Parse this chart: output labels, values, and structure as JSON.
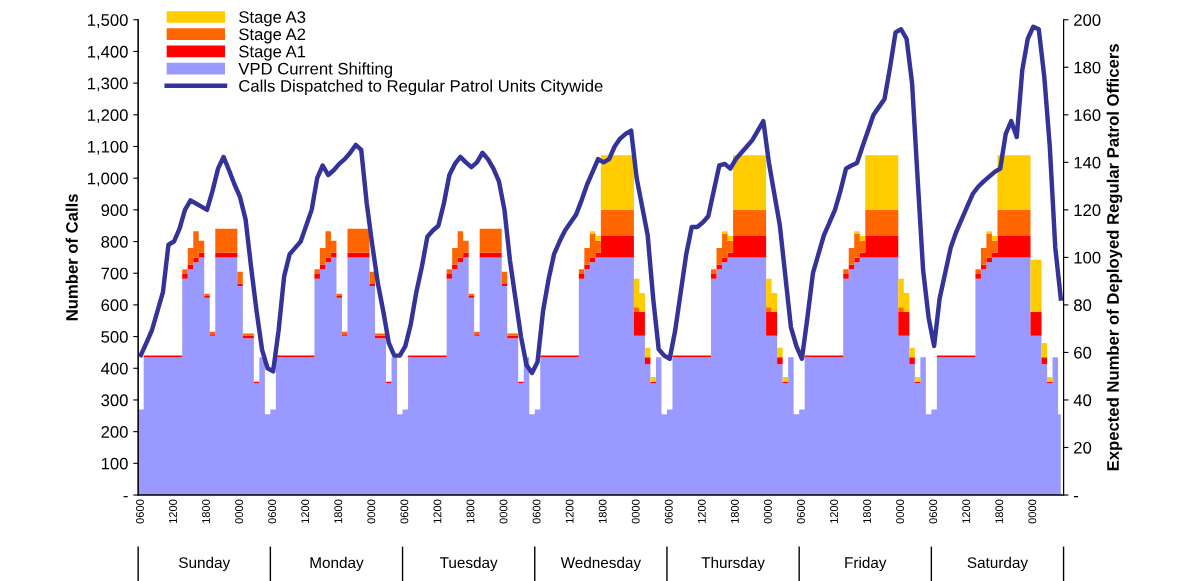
{
  "chart_data": {
    "type": "area",
    "stacked": true,
    "ylabel": "Number of Calls",
    "y2label": "Expected Number of Deployed Regular Patrol Officers",
    "categories": [
      "0600",
      null,
      null,
      null,
      null,
      null,
      "1200",
      null,
      null,
      null,
      null,
      null,
      "1800",
      null,
      null,
      null,
      null,
      null,
      "0000",
      null,
      null,
      null,
      null,
      null,
      "0600",
      null,
      null,
      null,
      null,
      null,
      "1200",
      null,
      null,
      null,
      null,
      null,
      "1800",
      null,
      null,
      null,
      null,
      null,
      "0000",
      null,
      null,
      null,
      null,
      null,
      "0600",
      null,
      null,
      null,
      null,
      null,
      "1200",
      null,
      null,
      null,
      null,
      null,
      "1800",
      null,
      null,
      null,
      null,
      null,
      "0000",
      null,
      null,
      null,
      null,
      null,
      "0600",
      null,
      null,
      null,
      null,
      null,
      "1200",
      null,
      null,
      null,
      null,
      null,
      "1800",
      null,
      null,
      null,
      null,
      null,
      "0000",
      null,
      null,
      null,
      null,
      null,
      "0600",
      null,
      null,
      null,
      null,
      null,
      "1200",
      null,
      null,
      null,
      null,
      null,
      "1800",
      null,
      null,
      null,
      null,
      null,
      "0000",
      null,
      null,
      null,
      null,
      null,
      "0600",
      null,
      null,
      null,
      null,
      null,
      "1200",
      null,
      null,
      null,
      null,
      null,
      "1800",
      null,
      null,
      null,
      null,
      null,
      "0000",
      null,
      null,
      null,
      null,
      null,
      "0600",
      null,
      null,
      null,
      null,
      null,
      "1200",
      null,
      null,
      null,
      null,
      null,
      "1800",
      null,
      null,
      null,
      null,
      null,
      "0000",
      null,
      null,
      null,
      null,
      null
    ],
    "series": [
      {
        "name": "VPD Current Shifting",
        "axis": "y2",
        "color": "#9999ff",
        "values": [
          36,
          58,
          58,
          58,
          58,
          58,
          58,
          58,
          91,
          95,
          98,
          100,
          83,
          67,
          100,
          100,
          100,
          100,
          88,
          66,
          66,
          47,
          58,
          34,
          36,
          58,
          58,
          58,
          58,
          58,
          58,
          58,
          91,
          95,
          98,
          100,
          83,
          67,
          100,
          100,
          100,
          100,
          88,
          66,
          66,
          47,
          58,
          34,
          36,
          58,
          58,
          58,
          58,
          58,
          58,
          58,
          91,
          95,
          98,
          100,
          83,
          67,
          100,
          100,
          100,
          100,
          88,
          66,
          66,
          47,
          58,
          34,
          36,
          58,
          58,
          58,
          58,
          58,
          58,
          58,
          91,
          95,
          98,
          100,
          100,
          100,
          100,
          100,
          100,
          100,
          67,
          67,
          55,
          47,
          58,
          34,
          36,
          58,
          58,
          58,
          58,
          58,
          58,
          58,
          91,
          95,
          98,
          100,
          100,
          100,
          100,
          100,
          100,
          100,
          67,
          67,
          55,
          47,
          58,
          34,
          36,
          58,
          58,
          58,
          58,
          58,
          58,
          58,
          91,
          95,
          98,
          100,
          100,
          100,
          100,
          100,
          100,
          100,
          67,
          67,
          55,
          47,
          58,
          34,
          36,
          58,
          58,
          58,
          58,
          58,
          58,
          58,
          91,
          95,
          98,
          100,
          100,
          100,
          100,
          100,
          100,
          100,
          67,
          67,
          55,
          47,
          58,
          34
        ]
      },
      {
        "name": "Stage A1",
        "axis": "y2",
        "color": "#ff0000",
        "values": [
          0,
          0.7,
          0.7,
          0.7,
          0.7,
          0.7,
          0.7,
          0.7,
          2,
          2,
          2,
          2,
          0.7,
          0.7,
          2,
          2,
          2,
          2,
          1,
          1,
          1,
          0.7,
          0,
          0,
          0,
          0.7,
          0.7,
          0.7,
          0.7,
          0.7,
          0.7,
          0.7,
          2,
          2,
          2,
          2,
          0.7,
          0.7,
          2,
          2,
          2,
          2,
          1,
          1,
          1,
          0.7,
          0,
          0,
          0,
          0.7,
          0.7,
          0.7,
          0.7,
          0.7,
          0.7,
          0.7,
          2,
          2,
          2,
          2,
          0.7,
          0.7,
          2,
          2,
          2,
          2,
          1,
          1,
          1,
          0.7,
          0,
          0,
          0,
          0.7,
          0.7,
          0.7,
          0.7,
          0.7,
          0.7,
          0.7,
          2,
          2,
          2,
          2,
          9,
          9,
          9,
          9,
          9,
          9,
          10,
          10,
          3,
          0.7,
          0,
          0,
          0,
          0.7,
          0.7,
          0.7,
          0.7,
          0.7,
          0.7,
          0.7,
          2,
          2,
          2,
          2,
          9,
          9,
          9,
          9,
          9,
          9,
          10,
          10,
          3,
          0.7,
          0,
          0,
          0,
          0.7,
          0.7,
          0.7,
          0.7,
          0.7,
          0.7,
          0.7,
          2,
          2,
          2,
          2,
          9,
          9,
          9,
          9,
          9,
          9,
          10,
          10,
          3,
          0.7,
          0,
          0,
          0,
          0.7,
          0.7,
          0.7,
          0.7,
          0.7,
          0.7,
          0.7,
          2,
          2,
          2,
          2,
          9,
          9,
          9,
          9,
          9,
          9,
          10,
          10,
          3,
          0.7,
          0,
          0
        ]
      },
      {
        "name": "Stage A2",
        "axis": "y2",
        "color": "#ff6600",
        "values": [
          0,
          0,
          0,
          0,
          0,
          0,
          0,
          0,
          2,
          7,
          11,
          5,
          1,
          1,
          10,
          10,
          10,
          10,
          5,
          1,
          1,
          0,
          0,
          0,
          0,
          0,
          0,
          0,
          0,
          0,
          0,
          0,
          2,
          7,
          11,
          5,
          1,
          1,
          10,
          10,
          10,
          10,
          5,
          1,
          1,
          0,
          0,
          0,
          0,
          0,
          0,
          0,
          0,
          0,
          0,
          0,
          2,
          7,
          11,
          5,
          1,
          1,
          10,
          10,
          10,
          10,
          5,
          1,
          1,
          0,
          0,
          0,
          0,
          0,
          0,
          0,
          0,
          0,
          0,
          0,
          2,
          7,
          10,
          5,
          11,
          11,
          11,
          11,
          11,
          11,
          2,
          0,
          0,
          0,
          0,
          0,
          0,
          0,
          0,
          0,
          0,
          0,
          0,
          0,
          2,
          7,
          10,
          5,
          11,
          11,
          11,
          11,
          11,
          11,
          2,
          0,
          0,
          0,
          0,
          0,
          0,
          0,
          0,
          0,
          0,
          0,
          0,
          0,
          2,
          7,
          10,
          5,
          11,
          11,
          11,
          11,
          11,
          11,
          2,
          0,
          0,
          0,
          0,
          0,
          0,
          0,
          0,
          0,
          0,
          0,
          0,
          0,
          2,
          7,
          10,
          5,
          11,
          11,
          11,
          11,
          11,
          11,
          0,
          0,
          0,
          0,
          0,
          0
        ]
      },
      {
        "name": "Stage A3",
        "axis": "y2",
        "color": "#ffcc00",
        "values": [
          0,
          0,
          0,
          0,
          0,
          0,
          0,
          0,
          0,
          0,
          0,
          0,
          0,
          0,
          0,
          0,
          0,
          0,
          0,
          0,
          0,
          0,
          0,
          0,
          0,
          0,
          0,
          0,
          0,
          0,
          0,
          0,
          0,
          0,
          0,
          0,
          0,
          0,
          0,
          0,
          0,
          0,
          0,
          0,
          0,
          0,
          0,
          0,
          0,
          0,
          0,
          0,
          0,
          0,
          0,
          0,
          0,
          0,
          0,
          0,
          0,
          0,
          0,
          0,
          0,
          0,
          0,
          0,
          0,
          0,
          0,
          0,
          0,
          0,
          0,
          0,
          0,
          0,
          0,
          0,
          0,
          0,
          1,
          2,
          23,
          23,
          23,
          23,
          23,
          23,
          12,
          8,
          4,
          2,
          0,
          0,
          0,
          0,
          0,
          0,
          0,
          0,
          0,
          0,
          0,
          0,
          1,
          2,
          23,
          23,
          23,
          23,
          23,
          23,
          12,
          8,
          4,
          2,
          0,
          0,
          0,
          0,
          0,
          0,
          0,
          0,
          0,
          0,
          0,
          0,
          1,
          2,
          23,
          23,
          23,
          23,
          23,
          23,
          12,
          8,
          4,
          2,
          0,
          0,
          0,
          0,
          0,
          0,
          0,
          0,
          0,
          0,
          0,
          0,
          1,
          2,
          23,
          23,
          23,
          23,
          23,
          23,
          22,
          22,
          6,
          2,
          0,
          0
        ]
      },
      {
        "name": "Calls Dispatched to Regular Patrol Units Citywide",
        "type": "line",
        "color": "#333399",
        "values": [
          442,
          480,
          520,
          580,
          640,
          790,
          800,
          840,
          900,
          930,
          920,
          910,
          900,
          960,
          1030,
          1067,
          1025,
          980,
          940,
          870,
          720,
          580,
          458,
          400,
          390,
          520,
          690,
          760,
          780,
          800,
          850,
          900,
          1000,
          1040,
          1010,
          1025,
          1045,
          1060,
          1080,
          1105,
          1089,
          920,
          790,
          670,
          580,
          480,
          440,
          440,
          470,
          540,
          640,
          720,
          815,
          835,
          850,
          920,
          1010,
          1045,
          1067,
          1050,
          1035,
          1050,
          1080,
          1060,
          1030,
          990,
          900,
          740,
          620,
          500,
          410,
          385,
          420,
          580,
          680,
          760,
          800,
          835,
          860,
          885,
          930,
          980,
          1020,
          1060,
          1050,
          1060,
          1100,
          1125,
          1140,
          1150,
          1000,
          910,
          820,
          620,
          460,
          440,
          430,
          520,
          640,
          760,
          846,
          846,
          860,
          880,
          960,
          1040,
          1045,
          1030,
          1060,
          1080,
          1100,
          1120,
          1150,
          1180,
          1050,
          950,
          850,
          690,
          530,
          470,
          430,
          560,
          700,
          760,
          820,
          860,
          900,
          960,
          1030,
          1040,
          1048,
          1100,
          1150,
          1200,
          1225,
          1250,
          1350,
          1460,
          1470,
          1440,
          1300,
          1000,
          710,
          560,
          470,
          620,
          700,
          780,
          830,
          870,
          910,
          950,
          973,
          990,
          1005,
          1020,
          1030,
          1140,
          1180,
          1130,
          1340,
          1440,
          1478,
          1470,
          1320,
          1100,
          780,
          620
        ]
      }
    ],
    "ylim": [
      0,
      1500
    ],
    "yticks": [
      {
        "value": 0,
        "label": "-"
      },
      100,
      200,
      300,
      400,
      500,
      600,
      700,
      800,
      900,
      {
        "value": 1000,
        "label": "1,000"
      },
      {
        "value": 1100,
        "label": "1,100"
      },
      {
        "value": 1200,
        "label": "1,200"
      },
      {
        "value": 1300,
        "label": "1,300"
      },
      {
        "value": 1400,
        "label": "1,400"
      },
      {
        "value": 1500,
        "label": "1,500"
      }
    ],
    "y2lim": [
      0,
      200
    ],
    "y2ticks": [
      {
        "value": 0,
        "label": "-"
      },
      20,
      40,
      60,
      80,
      100,
      120,
      140,
      160,
      180,
      200
    ],
    "annotations": [
      "Sunday",
      "Monday",
      "Tuesday",
      "Wednesday",
      "Thursday",
      "Friday",
      "Saturday"
    ],
    "legend": "top left",
    "marker": "none",
    "line_style": "solid"
  }
}
